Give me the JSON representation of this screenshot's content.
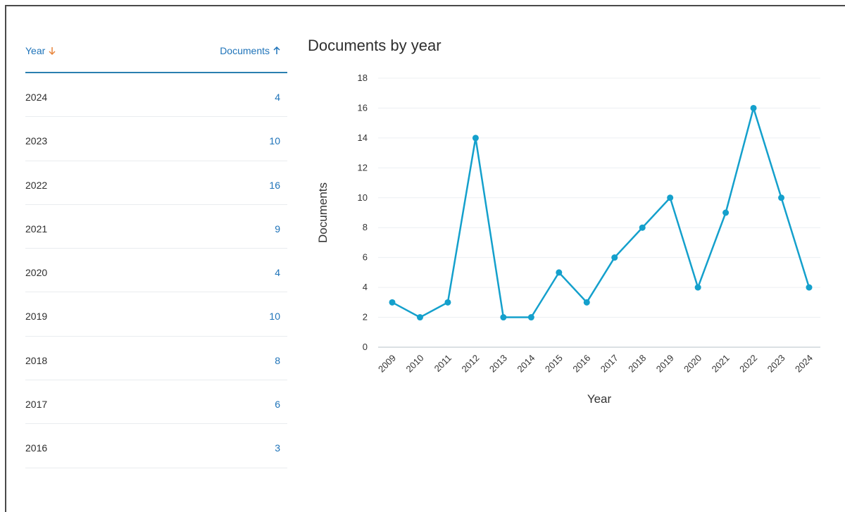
{
  "table": {
    "year_header": "Year",
    "docs_header": "Documents",
    "rows": [
      {
        "year": "2024",
        "documents": "4"
      },
      {
        "year": "2023",
        "documents": "10"
      },
      {
        "year": "2022",
        "documents": "16"
      },
      {
        "year": "2021",
        "documents": "9"
      },
      {
        "year": "2020",
        "documents": "4"
      },
      {
        "year": "2019",
        "documents": "10"
      },
      {
        "year": "2018",
        "documents": "8"
      },
      {
        "year": "2017",
        "documents": "6"
      },
      {
        "year": "2016",
        "documents": "3"
      }
    ]
  },
  "colors": {
    "line": "#14a0cc",
    "link": "#1e73b9",
    "sort_accent": "#e8843a"
  },
  "chart_data": {
    "type": "line",
    "title": "Documents by year",
    "xlabel": "Year",
    "ylabel": "Documents",
    "x": [
      "2009",
      "2010",
      "2011",
      "2012",
      "2013",
      "2014",
      "2015",
      "2016",
      "2017",
      "2018",
      "2019",
      "2020",
      "2021",
      "2022",
      "2023",
      "2024"
    ],
    "values": [
      3,
      2,
      3,
      14,
      2,
      2,
      5,
      3,
      6,
      8,
      10,
      4,
      9,
      16,
      10,
      4
    ],
    "ylim": [
      0,
      18
    ],
    "yticks": [
      0,
      2,
      4,
      6,
      8,
      10,
      12,
      14,
      16,
      18
    ],
    "grid": true
  }
}
